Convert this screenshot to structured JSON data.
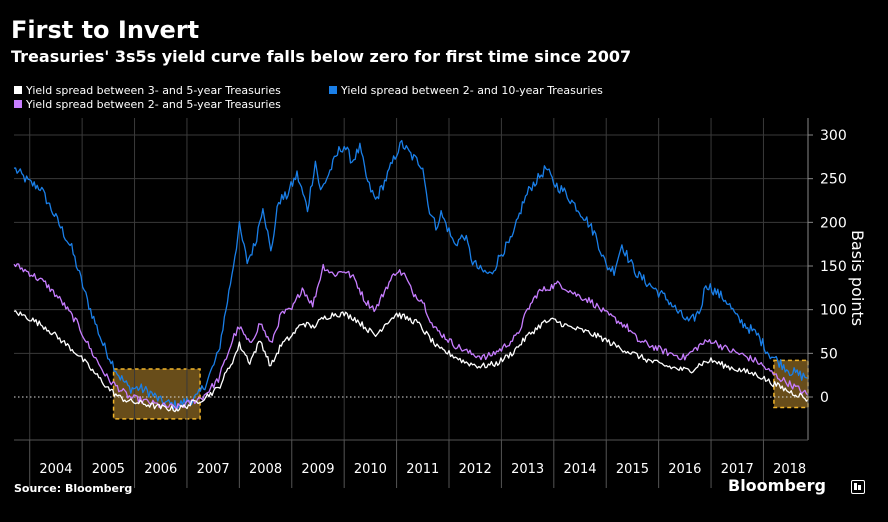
{
  "chart_data": {
    "type": "line",
    "title": "First to Invert",
    "subtitle": "Treasuries' 3s5s yield curve falls below zero for first time since 2007",
    "xlabel": "",
    "ylabel": "Basis points",
    "x_start": 2003.7,
    "x_end": 2018.85,
    "ylim": [
      -50,
      320
    ],
    "yticks": [
      0,
      50,
      100,
      150,
      200,
      250,
      300
    ],
    "year_labels": [
      "2004",
      "2005",
      "2006",
      "2007",
      "2008",
      "2009",
      "2010",
      "2011",
      "2012",
      "2013",
      "2014",
      "2015",
      "2016",
      "2017",
      "2018"
    ],
    "zero_line": "dotted",
    "highlight_ranges": [
      [
        2005.6,
        2007.25
      ],
      [
        2018.2,
        2018.85
      ]
    ],
    "series": [
      {
        "name": "Yield spread between 2- and 10-year Treasuries",
        "color": "#1a7fe8",
        "points": [
          [
            2003.7,
            262
          ],
          [
            2004.0,
            245
          ],
          [
            2004.2,
            240
          ],
          [
            2004.5,
            205
          ],
          [
            2004.8,
            170
          ],
          [
            2005.1,
            110
          ],
          [
            2005.4,
            60
          ],
          [
            2005.7,
            25
          ],
          [
            2005.9,
            10
          ],
          [
            2006.1,
            10
          ],
          [
            2006.3,
            5
          ],
          [
            2006.5,
            -5
          ],
          [
            2006.8,
            -10
          ],
          [
            2007.0,
            -5
          ],
          [
            2007.2,
            0
          ],
          [
            2007.4,
            20
          ],
          [
            2007.6,
            50
          ],
          [
            2007.8,
            120
          ],
          [
            2008.0,
            195
          ],
          [
            2008.15,
            155
          ],
          [
            2008.3,
            175
          ],
          [
            2008.45,
            220
          ],
          [
            2008.6,
            165
          ],
          [
            2008.75,
            225
          ],
          [
            2008.9,
            230
          ],
          [
            2009.1,
            255
          ],
          [
            2009.3,
            215
          ],
          [
            2009.45,
            270
          ],
          [
            2009.55,
            235
          ],
          [
            2009.7,
            255
          ],
          [
            2009.9,
            282
          ],
          [
            2010.0,
            288
          ],
          [
            2010.15,
            270
          ],
          [
            2010.3,
            285
          ],
          [
            2010.45,
            245
          ],
          [
            2010.6,
            225
          ],
          [
            2010.8,
            250
          ],
          [
            2011.0,
            280
          ],
          [
            2011.1,
            290
          ],
          [
            2011.3,
            275
          ],
          [
            2011.5,
            265
          ],
          [
            2011.6,
            220
          ],
          [
            2011.75,
            195
          ],
          [
            2011.85,
            210
          ],
          [
            2012.0,
            190
          ],
          [
            2012.1,
            175
          ],
          [
            2012.3,
            185
          ],
          [
            2012.45,
            155
          ],
          [
            2012.6,
            145
          ],
          [
            2012.8,
            140
          ],
          [
            2013.0,
            165
          ],
          [
            2013.2,
            180
          ],
          [
            2013.4,
            220
          ],
          [
            2013.55,
            240
          ],
          [
            2013.7,
            250
          ],
          [
            2013.85,
            262
          ],
          [
            2014.0,
            245
          ],
          [
            2014.2,
            235
          ],
          [
            2014.4,
            220
          ],
          [
            2014.6,
            205
          ],
          [
            2014.8,
            185
          ],
          [
            2015.0,
            150
          ],
          [
            2015.15,
            145
          ],
          [
            2015.3,
            175
          ],
          [
            2015.45,
            155
          ],
          [
            2015.6,
            140
          ],
          [
            2015.8,
            130
          ],
          [
            2016.0,
            120
          ],
          [
            2016.2,
            110
          ],
          [
            2016.4,
            95
          ],
          [
            2016.6,
            85
          ],
          [
            2016.8,
            100
          ],
          [
            2016.9,
            130
          ],
          [
            2017.1,
            120
          ],
          [
            2017.3,
            110
          ],
          [
            2017.5,
            90
          ],
          [
            2017.7,
            80
          ],
          [
            2017.9,
            70
          ],
          [
            2018.1,
            50
          ],
          [
            2018.3,
            40
          ],
          [
            2018.5,
            30
          ],
          [
            2018.7,
            25
          ],
          [
            2018.85,
            22
          ]
        ]
      },
      {
        "name": "Yield spread between 2- and 5-year Treasuries",
        "color": "#c77dff",
        "points": [
          [
            2003.7,
            152
          ],
          [
            2004.0,
            142
          ],
          [
            2004.3,
            130
          ],
          [
            2004.6,
            110
          ],
          [
            2004.9,
            85
          ],
          [
            2005.2,
            50
          ],
          [
            2005.5,
            20
          ],
          [
            2005.7,
            10
          ],
          [
            2005.9,
            0
          ],
          [
            2006.2,
            -5
          ],
          [
            2006.5,
            -10
          ],
          [
            2006.8,
            -12
          ],
          [
            2007.0,
            -8
          ],
          [
            2007.3,
            0
          ],
          [
            2007.6,
            20
          ],
          [
            2007.9,
            70
          ],
          [
            2008.0,
            80
          ],
          [
            2008.2,
            60
          ],
          [
            2008.4,
            85
          ],
          [
            2008.6,
            60
          ],
          [
            2008.8,
            95
          ],
          [
            2009.0,
            100
          ],
          [
            2009.2,
            125
          ],
          [
            2009.4,
            105
          ],
          [
            2009.6,
            150
          ],
          [
            2009.8,
            140
          ],
          [
            2010.0,
            145
          ],
          [
            2010.2,
            135
          ],
          [
            2010.4,
            110
          ],
          [
            2010.6,
            100
          ],
          [
            2010.8,
            125
          ],
          [
            2011.0,
            145
          ],
          [
            2011.15,
            140
          ],
          [
            2011.3,
            120
          ],
          [
            2011.5,
            110
          ],
          [
            2011.7,
            80
          ],
          [
            2011.9,
            70
          ],
          [
            2012.1,
            60
          ],
          [
            2012.4,
            50
          ],
          [
            2012.7,
            45
          ],
          [
            2013.0,
            55
          ],
          [
            2013.3,
            70
          ],
          [
            2013.5,
            100
          ],
          [
            2013.7,
            120
          ],
          [
            2013.9,
            125
          ],
          [
            2014.1,
            130
          ],
          [
            2014.4,
            118
          ],
          [
            2014.7,
            110
          ],
          [
            2015.0,
            95
          ],
          [
            2015.2,
            88
          ],
          [
            2015.4,
            80
          ],
          [
            2015.6,
            65
          ],
          [
            2015.8,
            60
          ],
          [
            2016.0,
            55
          ],
          [
            2016.2,
            50
          ],
          [
            2016.5,
            45
          ],
          [
            2016.8,
            60
          ],
          [
            2017.0,
            65
          ],
          [
            2017.3,
            55
          ],
          [
            2017.6,
            48
          ],
          [
            2017.9,
            40
          ],
          [
            2018.1,
            30
          ],
          [
            2018.3,
            22
          ],
          [
            2018.5,
            15
          ],
          [
            2018.7,
            8
          ],
          [
            2018.85,
            2
          ]
        ]
      },
      {
        "name": "Yield spread between 3- and 5-year Treasuries",
        "color": "#ffffff",
        "points": [
          [
            2003.7,
            98
          ],
          [
            2004.0,
            90
          ],
          [
            2004.3,
            80
          ],
          [
            2004.6,
            65
          ],
          [
            2004.9,
            50
          ],
          [
            2005.2,
            30
          ],
          [
            2005.5,
            10
          ],
          [
            2005.7,
            0
          ],
          [
            2005.9,
            -5
          ],
          [
            2006.2,
            -8
          ],
          [
            2006.5,
            -12
          ],
          [
            2006.8,
            -14
          ],
          [
            2007.0,
            -10
          ],
          [
            2007.3,
            -2
          ],
          [
            2007.6,
            10
          ],
          [
            2007.9,
            45
          ],
          [
            2008.0,
            60
          ],
          [
            2008.2,
            40
          ],
          [
            2008.4,
            65
          ],
          [
            2008.6,
            35
          ],
          [
            2008.8,
            60
          ],
          [
            2009.0,
            70
          ],
          [
            2009.2,
            85
          ],
          [
            2009.4,
            80
          ],
          [
            2009.6,
            90
          ],
          [
            2009.8,
            95
          ],
          [
            2010.0,
            95
          ],
          [
            2010.2,
            90
          ],
          [
            2010.4,
            80
          ],
          [
            2010.6,
            70
          ],
          [
            2010.8,
            85
          ],
          [
            2011.0,
            95
          ],
          [
            2011.2,
            90
          ],
          [
            2011.4,
            85
          ],
          [
            2011.6,
            70
          ],
          [
            2011.8,
            55
          ],
          [
            2012.0,
            50
          ],
          [
            2012.3,
            40
          ],
          [
            2012.6,
            35
          ],
          [
            2012.9,
            38
          ],
          [
            2013.2,
            50
          ],
          [
            2013.5,
            70
          ],
          [
            2013.8,
            85
          ],
          [
            2014.0,
            88
          ],
          [
            2014.3,
            80
          ],
          [
            2014.6,
            75
          ],
          [
            2014.9,
            68
          ],
          [
            2015.2,
            58
          ],
          [
            2015.5,
            50
          ],
          [
            2015.8,
            42
          ],
          [
            2016.0,
            38
          ],
          [
            2016.3,
            33
          ],
          [
            2016.6,
            30
          ],
          [
            2016.8,
            38
          ],
          [
            2017.0,
            42
          ],
          [
            2017.3,
            35
          ],
          [
            2017.6,
            30
          ],
          [
            2017.9,
            25
          ],
          [
            2018.1,
            18
          ],
          [
            2018.3,
            12
          ],
          [
            2018.5,
            6
          ],
          [
            2018.7,
            2
          ],
          [
            2018.85,
            -3
          ]
        ]
      }
    ]
  },
  "legend": {
    "items": [
      {
        "label": "Yield spread between 3- and 5-year Treasuries",
        "color": "#ffffff"
      },
      {
        "label": "Yield spread between 2- and 10-year Treasuries",
        "color": "#1a7fe8"
      },
      {
        "label": "Yield spread between 2- and 5-year Treasuries",
        "color": "#c77dff"
      }
    ]
  },
  "footer": {
    "source": "Source: Bloomberg",
    "brand": "Bloomberg"
  },
  "colors": {
    "background": "#000000",
    "grid": "#3a3a3a",
    "highlight_fill": "#7a5a1e",
    "highlight_stroke": "#f0b429",
    "text": "#ffffff"
  }
}
